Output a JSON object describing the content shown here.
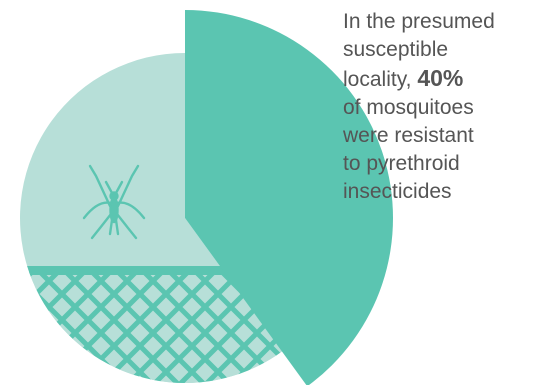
{
  "chart_data": {
    "type": "pie",
    "slices": [
      {
        "label": "Resistant",
        "percent": 40,
        "color": "#5bc5b1",
        "exploded": true
      },
      {
        "label": "Susceptible",
        "percent": 60,
        "color": "#b7dfd8"
      }
    ],
    "net_pattern_color": "#5bc5b1",
    "icon": "mosquito-icon"
  },
  "callout": {
    "before": "In the presumed\nsusceptible\nlocality, ",
    "highlight": "40%",
    "after": "\nof mosquitoes\nwere resistant\nto pyrethroid\ninsecticides"
  }
}
